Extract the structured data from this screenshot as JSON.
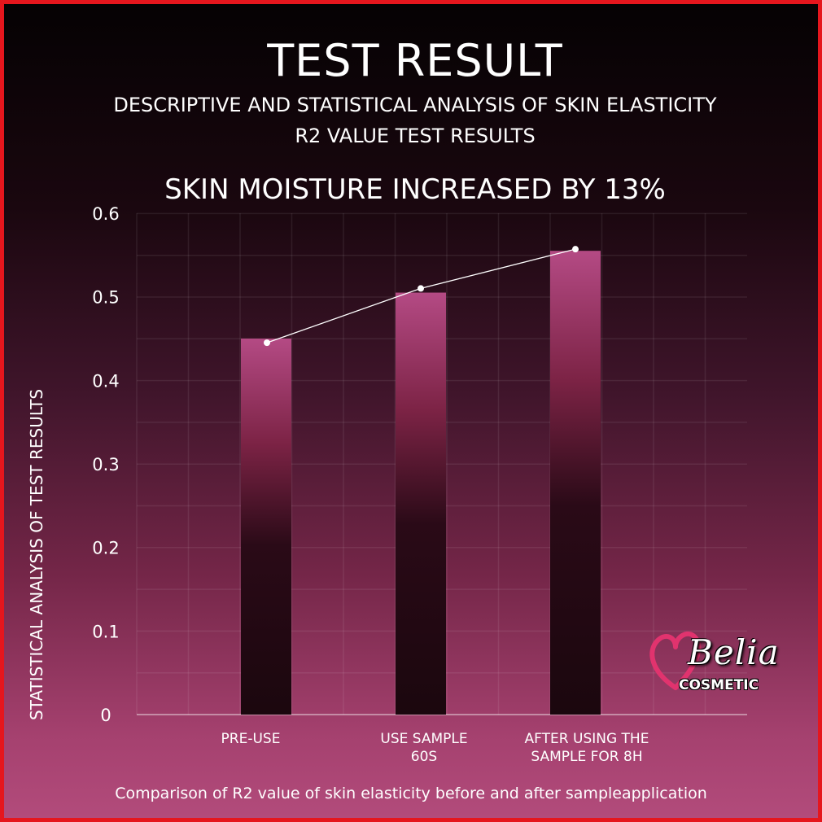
{
  "header": {
    "title": "TEST RESULT",
    "subtitle_line1": "DESCRIPTIVE AND STATISTICAL ANALYSIS OF SKIN ELASTICITY",
    "subtitle_line2": "R2 VALUE TEST RESULTS",
    "headline": "SKIN MOISTURE INCREASED BY 13%"
  },
  "caption": "Comparison of R2 value of skin elasticity before and after sampleapplication",
  "logo": {
    "word": "Belia",
    "sub": "COSMETIC",
    "heart_color": "#e1336e"
  },
  "colors": {
    "border": "#e5161d",
    "bar_top": "#b44a84",
    "bar_mid": "#7c2345",
    "bar_bottom": "#1b070e"
  },
  "chart_data": {
    "type": "bar",
    "categories": [
      "PRE-USE",
      "USE SAMPLE 60S",
      "AFTER USING THE SAMPLE FOR 8H"
    ],
    "category_lines": [
      [
        "PRE-USE"
      ],
      [
        "USE SAMPLE",
        "60S"
      ],
      [
        "AFTER USING THE",
        "SAMPLE FOR 8H"
      ]
    ],
    "values": [
      0.45,
      0.505,
      0.555
    ],
    "line_values": [
      0.445,
      0.51,
      0.557
    ],
    "ylabel": "STATISTICAL ANALYSIS OF TEST RESULTS",
    "xlabel": "",
    "ylim": [
      0,
      0.6
    ],
    "yticks": [
      "0",
      "0.1",
      "0.2",
      "0.3",
      "0.4",
      "0.5",
      "0.6"
    ],
    "grid": true
  }
}
